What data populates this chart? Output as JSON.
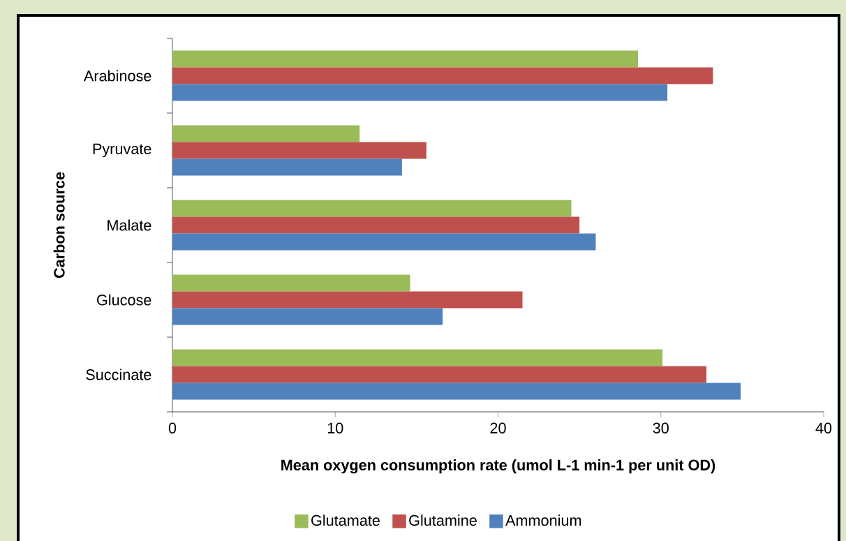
{
  "chart_data": {
    "type": "bar",
    "orientation": "horizontal",
    "categories": [
      "Arabinose",
      "Pyruvate",
      "Malate",
      "Glucose",
      "Succinate"
    ],
    "series": [
      {
        "name": "Glutamate",
        "color": "#9bbb59",
        "values": [
          28.6,
          11.5,
          24.5,
          14.6,
          30.1
        ]
      },
      {
        "name": "Glutamine",
        "color": "#c0504d",
        "values": [
          33.2,
          15.6,
          25.0,
          21.5,
          32.8
        ]
      },
      {
        "name": "Ammonium",
        "color": "#4f81bd",
        "values": [
          30.4,
          14.1,
          26.0,
          16.6,
          34.9
        ]
      }
    ],
    "xlim": [
      0,
      40
    ],
    "xticks": [
      0,
      10,
      20,
      30,
      40
    ],
    "xlabel": "Mean oxygen consumption rate (umol L-1 min-1 per unit OD)",
    "ylabel": "Carbon source",
    "legend": "bottom"
  }
}
